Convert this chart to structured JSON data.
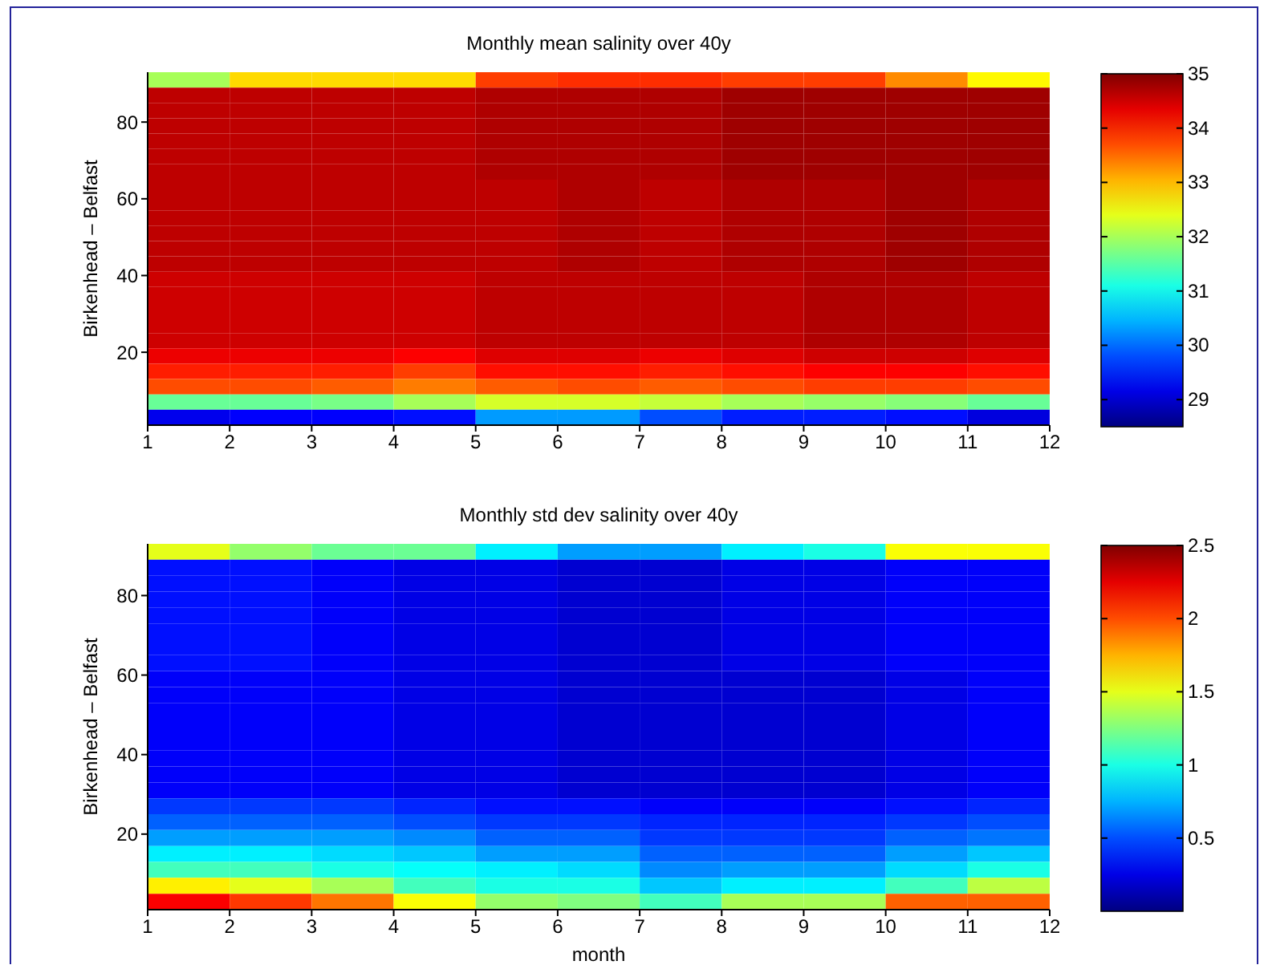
{
  "chart_data": [
    {
      "type": "heatmap",
      "title": "Monthly mean salinity over 40y",
      "ylabel": "Birkenhead – Belfast",
      "xlim": [
        1,
        12
      ],
      "xticks": [
        1,
        2,
        3,
        4,
        5,
        6,
        7,
        8,
        9,
        10,
        11,
        12
      ],
      "ylim": [
        1,
        93
      ],
      "yticks": [
        20,
        40,
        60,
        80
      ],
      "clim": [
        28.5,
        35
      ],
      "cticks": [
        29,
        30,
        31,
        32,
        33,
        34,
        35
      ],
      "cells": [
        [
          32.0,
          32.8,
          32.8,
          32.8,
          33.8,
          33.9,
          33.9,
          33.8,
          33.8,
          33.3,
          32.6
        ],
        [
          34.6,
          34.6,
          34.6,
          34.6,
          34.7,
          34.7,
          34.7,
          34.8,
          34.8,
          34.8,
          34.8
        ],
        [
          34.6,
          34.6,
          34.6,
          34.6,
          34.7,
          34.7,
          34.7,
          34.8,
          34.8,
          34.8,
          34.8
        ],
        [
          34.6,
          34.6,
          34.6,
          34.6,
          34.7,
          34.7,
          34.7,
          34.8,
          34.8,
          34.8,
          34.8
        ],
        [
          34.6,
          34.6,
          34.6,
          34.6,
          34.7,
          34.7,
          34.7,
          34.8,
          34.8,
          34.8,
          34.8
        ],
        [
          34.6,
          34.6,
          34.6,
          34.6,
          34.7,
          34.7,
          34.7,
          34.8,
          34.8,
          34.8,
          34.8
        ],
        [
          34.6,
          34.6,
          34.6,
          34.6,
          34.7,
          34.7,
          34.7,
          34.8,
          34.8,
          34.8,
          34.8
        ],
        [
          34.6,
          34.6,
          34.6,
          34.6,
          34.6,
          34.7,
          34.6,
          34.7,
          34.7,
          34.8,
          34.7
        ],
        [
          34.6,
          34.6,
          34.6,
          34.6,
          34.6,
          34.7,
          34.6,
          34.7,
          34.7,
          34.8,
          34.7
        ],
        [
          34.6,
          34.6,
          34.6,
          34.6,
          34.6,
          34.7,
          34.6,
          34.7,
          34.7,
          34.8,
          34.7
        ],
        [
          34.6,
          34.6,
          34.6,
          34.6,
          34.6,
          34.7,
          34.6,
          34.7,
          34.7,
          34.8,
          34.7
        ],
        [
          34.6,
          34.6,
          34.6,
          34.6,
          34.6,
          34.7,
          34.6,
          34.7,
          34.7,
          34.8,
          34.7
        ],
        [
          34.6,
          34.6,
          34.6,
          34.6,
          34.6,
          34.7,
          34.6,
          34.7,
          34.7,
          34.8,
          34.7
        ],
        [
          34.5,
          34.5,
          34.5,
          34.5,
          34.6,
          34.6,
          34.6,
          34.6,
          34.7,
          34.7,
          34.6
        ],
        [
          34.5,
          34.5,
          34.5,
          34.5,
          34.6,
          34.6,
          34.6,
          34.6,
          34.7,
          34.7,
          34.6
        ],
        [
          34.5,
          34.5,
          34.5,
          34.5,
          34.6,
          34.6,
          34.6,
          34.6,
          34.7,
          34.7,
          34.6
        ],
        [
          34.5,
          34.5,
          34.5,
          34.5,
          34.6,
          34.6,
          34.6,
          34.6,
          34.7,
          34.7,
          34.6
        ],
        [
          34.5,
          34.5,
          34.5,
          34.5,
          34.6,
          34.6,
          34.6,
          34.6,
          34.7,
          34.7,
          34.6
        ],
        [
          34.3,
          34.3,
          34.3,
          34.2,
          34.4,
          34.4,
          34.3,
          34.4,
          34.5,
          34.5,
          34.4
        ],
        [
          34.0,
          34.0,
          34.0,
          33.8,
          34.1,
          34.1,
          34.0,
          34.1,
          34.2,
          34.2,
          34.1
        ],
        [
          33.7,
          33.7,
          33.6,
          33.4,
          33.6,
          33.7,
          33.6,
          33.7,
          33.8,
          33.8,
          33.7
        ],
        [
          31.6,
          31.6,
          31.7,
          32.0,
          32.3,
          32.3,
          32.2,
          32.0,
          31.9,
          31.8,
          31.6
        ],
        [
          29.2,
          29.3,
          29.3,
          29.4,
          30.3,
          30.3,
          29.8,
          29.5,
          29.5,
          29.4,
          29.1
        ]
      ]
    },
    {
      "type": "heatmap",
      "title": "Monthly std dev salinity over 40y",
      "xlabel": "month",
      "ylabel": "Birkenhead – Belfast",
      "xlim": [
        1,
        12
      ],
      "xticks": [
        1,
        2,
        3,
        4,
        5,
        6,
        7,
        8,
        9,
        10,
        11,
        12
      ],
      "ylim": [
        1,
        93
      ],
      "yticks": [
        20,
        40,
        60,
        80
      ],
      "clim": [
        0,
        2.5
      ],
      "cticks": [
        0.5,
        1,
        1.5,
        2,
        2.5
      ],
      "cells": [
        [
          1.5,
          1.3,
          1.2,
          1.2,
          0.9,
          0.7,
          0.7,
          0.9,
          1.0,
          1.55,
          1.55
        ],
        [
          0.35,
          0.35,
          0.3,
          0.25,
          0.25,
          0.2,
          0.2,
          0.25,
          0.25,
          0.3,
          0.3
        ],
        [
          0.35,
          0.35,
          0.3,
          0.25,
          0.25,
          0.2,
          0.2,
          0.25,
          0.25,
          0.3,
          0.3
        ],
        [
          0.35,
          0.35,
          0.3,
          0.25,
          0.25,
          0.2,
          0.2,
          0.25,
          0.25,
          0.3,
          0.3
        ],
        [
          0.35,
          0.35,
          0.3,
          0.25,
          0.25,
          0.2,
          0.2,
          0.25,
          0.25,
          0.3,
          0.3
        ],
        [
          0.35,
          0.35,
          0.3,
          0.25,
          0.25,
          0.2,
          0.2,
          0.25,
          0.25,
          0.3,
          0.3
        ],
        [
          0.35,
          0.35,
          0.3,
          0.25,
          0.25,
          0.2,
          0.2,
          0.25,
          0.25,
          0.3,
          0.3
        ],
        [
          0.35,
          0.35,
          0.3,
          0.25,
          0.25,
          0.2,
          0.2,
          0.25,
          0.25,
          0.3,
          0.3
        ],
        [
          0.3,
          0.3,
          0.3,
          0.25,
          0.25,
          0.2,
          0.2,
          0.2,
          0.2,
          0.25,
          0.3
        ],
        [
          0.3,
          0.3,
          0.3,
          0.25,
          0.25,
          0.2,
          0.2,
          0.2,
          0.2,
          0.25,
          0.3
        ],
        [
          0.3,
          0.3,
          0.3,
          0.25,
          0.25,
          0.2,
          0.2,
          0.2,
          0.2,
          0.25,
          0.3
        ],
        [
          0.3,
          0.3,
          0.3,
          0.25,
          0.25,
          0.2,
          0.2,
          0.2,
          0.2,
          0.25,
          0.3
        ],
        [
          0.3,
          0.3,
          0.3,
          0.25,
          0.25,
          0.2,
          0.2,
          0.2,
          0.2,
          0.25,
          0.3
        ],
        [
          0.3,
          0.3,
          0.3,
          0.25,
          0.25,
          0.2,
          0.2,
          0.2,
          0.2,
          0.25,
          0.3
        ],
        [
          0.3,
          0.3,
          0.3,
          0.25,
          0.25,
          0.2,
          0.2,
          0.2,
          0.2,
          0.25,
          0.3
        ],
        [
          0.3,
          0.3,
          0.3,
          0.25,
          0.25,
          0.2,
          0.2,
          0.2,
          0.2,
          0.25,
          0.3
        ],
        [
          0.45,
          0.45,
          0.45,
          0.4,
          0.35,
          0.35,
          0.3,
          0.3,
          0.3,
          0.35,
          0.4
        ],
        [
          0.55,
          0.55,
          0.55,
          0.5,
          0.45,
          0.45,
          0.4,
          0.4,
          0.4,
          0.45,
          0.5
        ],
        [
          0.7,
          0.7,
          0.7,
          0.65,
          0.55,
          0.55,
          0.45,
          0.45,
          0.45,
          0.55,
          0.6
        ],
        [
          0.9,
          0.9,
          0.85,
          0.8,
          0.7,
          0.7,
          0.55,
          0.55,
          0.55,
          0.7,
          0.8
        ],
        [
          1.1,
          1.1,
          1.0,
          0.95,
          0.9,
          0.85,
          0.65,
          0.7,
          0.7,
          0.85,
          1.0
        ],
        [
          1.6,
          1.5,
          1.35,
          1.1,
          1.0,
          1.0,
          0.8,
          0.9,
          0.9,
          1.1,
          1.4
        ],
        [
          2.2,
          2.05,
          1.9,
          1.55,
          1.3,
          1.25,
          1.1,
          1.35,
          1.35,
          1.95,
          1.95
        ]
      ]
    }
  ]
}
